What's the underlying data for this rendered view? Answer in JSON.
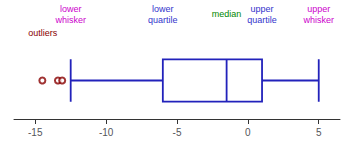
{
  "chart_data": {
    "type": "boxplot",
    "orientation": "horizontal",
    "xlim": [
      -16.5,
      6.5
    ],
    "xticks": [
      -15,
      -10,
      -5,
      0,
      5
    ],
    "grid": false,
    "tick_labels": "x",
    "series": [
      {
        "type": "boxplot",
        "values": [
          -12.5,
          -6.0,
          -1.5,
          1.0,
          5.0
        ],
        "color": "#2222bb"
      },
      {
        "type": "scatter",
        "values": [
          -14.5,
          -13.4,
          -13.1
        ],
        "color": "#880000"
      }
    ],
    "annotations": [
      {
        "text": "lower\nwhisker",
        "x": -12.5,
        "color": "#cc00cc"
      },
      {
        "text": "lower\nquartile",
        "x": -6.0,
        "color": "#3333cc"
      },
      {
        "text": "median",
        "x": -1.5,
        "color": "#008800"
      },
      {
        "text": "upper\nquartile",
        "x": 1.0,
        "color": "#3333cc"
      },
      {
        "text": "upper\nwhisker",
        "x": 5.0,
        "color": "#cc00cc"
      },
      {
        "text": "outliers",
        "x": -15.5,
        "color": "#880000"
      }
    ]
  }
}
